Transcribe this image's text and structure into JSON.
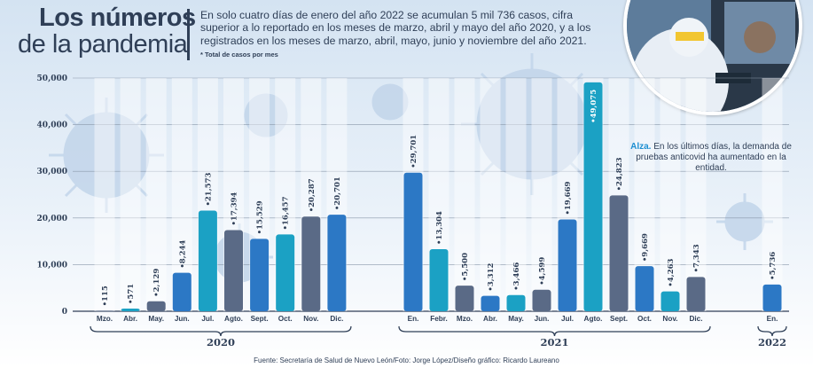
{
  "header": {
    "title_line1": "Los números",
    "title_line2": "de la pandemia",
    "intro": "En solo cuatro días de enero del año 2022 se acumulan 5 mil 736 casos, cifra superior a lo reportado en los meses de marzo, abril y mayo del año 2020, y a los registrados en los meses de marzo, abril, mayo, junio y noviembre del año 2021.",
    "note": "* Total de casos por mes"
  },
  "callout": {
    "bold": "Alza.",
    "text": " En los últimos días, la demanda de pruebas anticovid ha aumentado en la entidad."
  },
  "source": "Fuente: Secretaría de Salud de Nuevo León/Foto: Jorge López/Diseño gráfico: Ricardo Laureano",
  "colors": {
    "dark_bar": "#5a6a86",
    "blue_bar": "#2c78c5",
    "teal_bar": "#1ba1c4",
    "text": "#2f3f57",
    "background_top": "#d4e3f2"
  },
  "chart_data": {
    "type": "bar",
    "title": "Los números de la pandemia",
    "ylim": [
      0,
      50000
    ],
    "yticks": [
      "0",
      "10,000",
      "20,000",
      "30,000",
      "40,000",
      "50,000"
    ],
    "ytick_values": [
      0,
      10000,
      20000,
      30000,
      40000,
      50000
    ],
    "grid": true,
    "groups": [
      {
        "year": "2020",
        "bars": [
          {
            "label": "Mzo.",
            "value": 115,
            "display": "115",
            "color": "dark"
          },
          {
            "label": "Abr.",
            "value": 571,
            "display": "571",
            "color": "teal"
          },
          {
            "label": "May.",
            "value": 2129,
            "display": "2,129",
            "color": "dark"
          },
          {
            "label": "Jun.",
            "value": 8244,
            "display": "8,244",
            "color": "blue"
          },
          {
            "label": "Jul.",
            "value": 21573,
            "display": "21,573",
            "color": "teal"
          },
          {
            "label": "Agto.",
            "value": 17394,
            "display": "17,394",
            "color": "dark"
          },
          {
            "label": "Sept.",
            "value": 15529,
            "display": "15,529",
            "color": "blue"
          },
          {
            "label": "Oct.",
            "value": 16457,
            "display": "16,457",
            "color": "teal"
          },
          {
            "label": "Nov.",
            "value": 20287,
            "display": "20,287",
            "color": "dark"
          },
          {
            "label": "Dic.",
            "value": 20701,
            "display": "20,701",
            "color": "blue"
          }
        ]
      },
      {
        "year": "2021",
        "bars": [
          {
            "label": "En.",
            "value": 29701,
            "display": "29,701",
            "color": "blue"
          },
          {
            "label": "Febr.",
            "value": 13304,
            "display": "13,304",
            "color": "teal"
          },
          {
            "label": "Mzo.",
            "value": 5500,
            "display": "5,500",
            "color": "dark"
          },
          {
            "label": "Abr.",
            "value": 3312,
            "display": "3,312",
            "color": "blue"
          },
          {
            "label": "May.",
            "value": 3466,
            "display": "3,466",
            "color": "teal"
          },
          {
            "label": "Jun.",
            "value": 4599,
            "display": "4,599",
            "color": "dark"
          },
          {
            "label": "Jul.",
            "value": 19669,
            "display": "19,669",
            "color": "blue"
          },
          {
            "label": "Agto.",
            "value": 49075,
            "display": "49,075",
            "color": "teal"
          },
          {
            "label": "Sept.",
            "value": 24823,
            "display": "24,823",
            "color": "dark"
          },
          {
            "label": "Oct.",
            "value": 9669,
            "display": "9,669",
            "color": "blue"
          },
          {
            "label": "Nov.",
            "value": 4263,
            "display": "4,263",
            "color": "teal"
          },
          {
            "label": "Dic.",
            "value": 7343,
            "display": "7,343",
            "color": "dark"
          }
        ]
      },
      {
        "year": "2022",
        "bars": [
          {
            "label": "En.",
            "value": 5736,
            "display": "5,736",
            "color": "blue"
          }
        ]
      }
    ]
  }
}
